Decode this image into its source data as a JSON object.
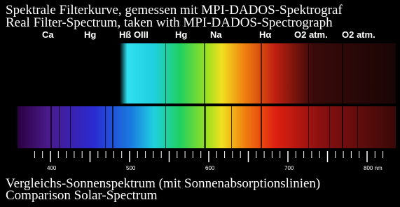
{
  "header": {
    "title_de": "Spektrale Filterkurve, gemessen mit MPI-DADOS-Spektrograf",
    "title_en": "Real Filter-Spectrum, taken with MPI-DADOS-Spectrograph"
  },
  "line_labels": [
    {
      "label": "Ca"
    },
    {
      "label": "Hg"
    },
    {
      "label": "Hß OIII"
    },
    {
      "label": "Hg"
    },
    {
      "label": "Na"
    },
    {
      "label": "Hα"
    },
    {
      "label": "O2 atm."
    },
    {
      "label": "O2 atm."
    }
  ],
  "wavelength_labels": [
    "400",
    "500",
    "600",
    "700",
    "800 nm"
  ],
  "footer": {
    "caption_de": "Vergleichs-Sonnenspektrum (mit Sonnenabsorptionslinien)",
    "caption_en": "Comparison Solar-Spectrum"
  }
}
